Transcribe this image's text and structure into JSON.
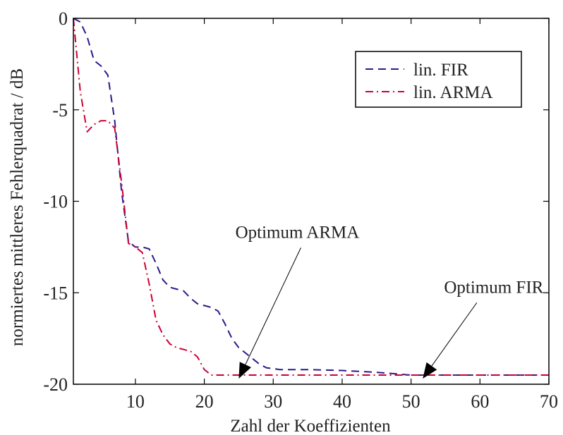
{
  "chart_data": {
    "type": "line",
    "xlabel": "Zahl der Koeffizienten",
    "ylabel": "normiertes mittleres Fehlerquadrat / dB",
    "xlim": [
      1,
      70
    ],
    "ylim": [
      -20,
      0
    ],
    "x_ticks": [
      10,
      20,
      30,
      40,
      50,
      60,
      70
    ],
    "y_ticks": [
      0,
      -5,
      -10,
      -15,
      -20
    ],
    "grid": false,
    "legend_position": "top-right",
    "series": [
      {
        "name": "lin. FIR",
        "color": "#2a1a8c",
        "dash": "dashed",
        "x": [
          1,
          2,
          3,
          4,
          5,
          6,
          7,
          8,
          9,
          10,
          11,
          12,
          13,
          14,
          15,
          16,
          17,
          18,
          19,
          20,
          21,
          22,
          23,
          24,
          25,
          26,
          27,
          28,
          29,
          30,
          31,
          32,
          35,
          40,
          45,
          50,
          55,
          60,
          65,
          70
        ],
        "values": [
          0.0,
          -0.2,
          -1.0,
          -2.3,
          -2.6,
          -3.1,
          -5.6,
          -9.5,
          -12.2,
          -12.5,
          -12.5,
          -12.6,
          -13.4,
          -14.3,
          -14.7,
          -14.8,
          -14.9,
          -15.3,
          -15.6,
          -15.7,
          -15.8,
          -16.0,
          -16.7,
          -17.5,
          -18.0,
          -18.3,
          -18.6,
          -18.9,
          -19.1,
          -19.15,
          -19.2,
          -19.2,
          -19.2,
          -19.25,
          -19.35,
          -19.5,
          -19.5,
          -19.5,
          -19.5,
          -19.5
        ]
      },
      {
        "name": "lin. ARMA",
        "color": "#cc0033",
        "dash": "dashdot",
        "x": [
          1,
          2,
          3,
          4,
          5,
          6,
          7,
          8,
          9,
          10,
          11,
          12,
          13,
          14,
          15,
          16,
          17,
          18,
          19,
          20,
          21,
          22,
          23,
          25,
          30,
          35,
          40,
          45,
          50,
          55,
          60,
          65,
          70
        ],
        "values": [
          0.0,
          -4.0,
          -6.2,
          -5.8,
          -5.6,
          -5.6,
          -6.0,
          -9.0,
          -12.3,
          -12.5,
          -12.8,
          -14.5,
          -16.5,
          -17.3,
          -17.8,
          -18.0,
          -18.1,
          -18.2,
          -18.5,
          -19.2,
          -19.5,
          -19.5,
          -19.5,
          -19.5,
          -19.5,
          -19.5,
          -19.5,
          -19.5,
          -19.5,
          -19.5,
          -19.5,
          -19.5,
          -19.5
        ]
      }
    ],
    "annotations": [
      {
        "text": "Optimum ARMA",
        "text_x": 33.5,
        "text_y": -12.0,
        "arrow_to_x": 25.0,
        "arrow_to_y": -19.5
      },
      {
        "text": "Optimum FIR",
        "text_x": 62.0,
        "text_y": -15.0,
        "arrow_to_x": 52.0,
        "arrow_to_y": -19.5
      }
    ]
  }
}
